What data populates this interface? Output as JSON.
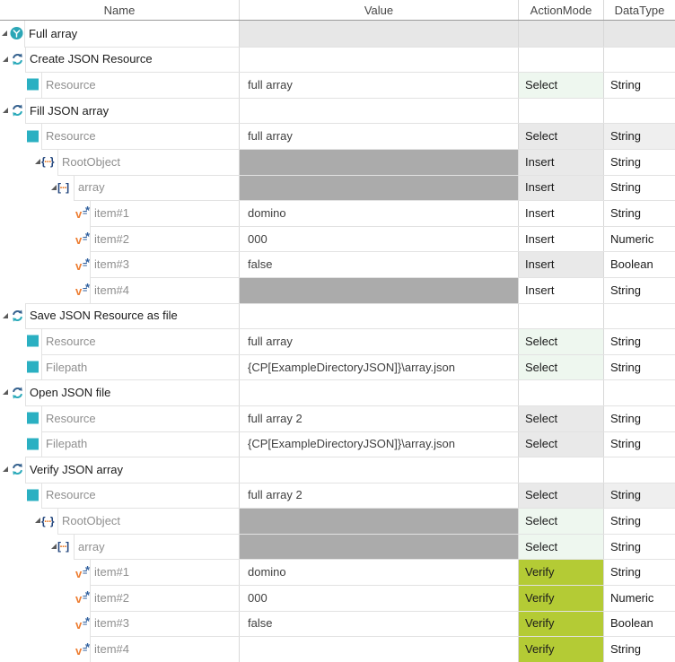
{
  "header": {
    "columns": [
      {
        "label": "Name"
      },
      {
        "label": "Value"
      },
      {
        "label": "ActionMode"
      },
      {
        "label": "DataType"
      }
    ]
  },
  "colors": {
    "verify_green": "#b4cb35",
    "select_mint": "#eef7ef",
    "actionmode_gray": "#e9e9e9",
    "disabled_value_gray": "#ababab",
    "row_header_gray": "#e7e7e7",
    "teal_accent": "#2bb0c2",
    "step_blue": "#35618e",
    "value_orange": "#ed7d31",
    "json_brace_blue": "#24477e"
  },
  "rows": [
    {
      "name": "Full array",
      "level": 0,
      "icon": "testcase-icon",
      "expander": true,
      "kind": "title",
      "value": "",
      "value_bg": "rowgray",
      "action_mode": "",
      "am_bg": "rowgray",
      "data_type": "",
      "dt_bg": "rowgray"
    },
    {
      "name": "Create JSON Resource",
      "level": 1,
      "icon": "module-step-icon",
      "expander": true,
      "kind": "title",
      "value": "",
      "value_bg": "white",
      "action_mode": "",
      "am_bg": "white",
      "data_type": "",
      "dt_bg": "white"
    },
    {
      "name": "Resource",
      "level": 2,
      "icon": "attribute-square-icon",
      "expander": false,
      "kind": "param",
      "value": "full array",
      "value_bg": "white",
      "action_mode": "Select",
      "am_bg": "mint",
      "data_type": "String",
      "dt_bg": "white"
    },
    {
      "name": "Fill JSON array",
      "level": 1,
      "icon": "module-step-icon",
      "expander": true,
      "kind": "title",
      "value": "",
      "value_bg": "white",
      "action_mode": "",
      "am_bg": "white",
      "data_type": "",
      "dt_bg": "white"
    },
    {
      "name": "Resource",
      "level": 2,
      "icon": "attribute-square-icon",
      "expander": false,
      "kind": "param",
      "value": "full array",
      "value_bg": "white",
      "action_mode": "Select",
      "am_bg": "gray",
      "data_type": "String",
      "dt_bg": "gray2"
    },
    {
      "name": "RootObject",
      "level": 3,
      "icon": "json-object-icon",
      "expander": true,
      "kind": "param",
      "value": "",
      "value_bg": "dark",
      "action_mode": "Insert",
      "am_bg": "gray",
      "data_type": "String",
      "dt_bg": "white"
    },
    {
      "name": "array",
      "level": 4,
      "icon": "json-array-icon",
      "expander": true,
      "kind": "param",
      "value": "",
      "value_bg": "dark",
      "action_mode": "Insert",
      "am_bg": "gray",
      "data_type": "String",
      "dt_bg": "white"
    },
    {
      "name": "item#1",
      "level": 5,
      "icon": "value-icon",
      "expander": false,
      "kind": "param",
      "value": "domino",
      "value_bg": "white",
      "action_mode": "Insert",
      "am_bg": "white",
      "data_type": "String",
      "dt_bg": "white"
    },
    {
      "name": "item#2",
      "level": 5,
      "icon": "value-icon",
      "expander": false,
      "kind": "param",
      "value": "000",
      "value_bg": "white",
      "action_mode": "Insert",
      "am_bg": "white",
      "data_type": "Numeric",
      "dt_bg": "white"
    },
    {
      "name": "item#3",
      "level": 5,
      "icon": "value-icon",
      "expander": false,
      "kind": "param",
      "value": "false",
      "value_bg": "white",
      "action_mode": "Insert",
      "am_bg": "gray",
      "data_type": "Boolean",
      "dt_bg": "white"
    },
    {
      "name": "item#4",
      "level": 5,
      "icon": "value-icon",
      "expander": false,
      "kind": "param",
      "value": "",
      "value_bg": "dark",
      "action_mode": "Insert",
      "am_bg": "white",
      "data_type": "String",
      "dt_bg": "white"
    },
    {
      "name": "Save JSON Resource as file",
      "level": 1,
      "icon": "module-step-icon",
      "expander": true,
      "kind": "title",
      "value": "",
      "value_bg": "white",
      "action_mode": "",
      "am_bg": "white",
      "data_type": "",
      "dt_bg": "white"
    },
    {
      "name": "Resource",
      "level": 2,
      "icon": "attribute-square-icon",
      "expander": false,
      "kind": "param",
      "value": "full array",
      "value_bg": "white",
      "action_mode": "Select",
      "am_bg": "mint",
      "data_type": "String",
      "dt_bg": "white"
    },
    {
      "name": "Filepath",
      "level": 2,
      "icon": "attribute-square-icon",
      "expander": false,
      "kind": "param",
      "value": "{CP[ExampleDirectoryJSON]}\\array.json",
      "value_bg": "white",
      "action_mode": "Select",
      "am_bg": "mint",
      "data_type": "String",
      "dt_bg": "white"
    },
    {
      "name": "Open JSON file",
      "level": 1,
      "icon": "module-step-icon",
      "expander": true,
      "kind": "title",
      "value": "",
      "value_bg": "white",
      "action_mode": "",
      "am_bg": "white",
      "data_type": "",
      "dt_bg": "white"
    },
    {
      "name": "Resource",
      "level": 2,
      "icon": "attribute-square-icon",
      "expander": false,
      "kind": "param",
      "value": "full array 2",
      "value_bg": "white",
      "action_mode": "Select",
      "am_bg": "gray",
      "data_type": "String",
      "dt_bg": "white"
    },
    {
      "name": "Filepath",
      "level": 2,
      "icon": "attribute-square-icon",
      "expander": false,
      "kind": "param",
      "value": "{CP[ExampleDirectoryJSON]}\\array.json",
      "value_bg": "white",
      "action_mode": "Select",
      "am_bg": "gray",
      "data_type": "String",
      "dt_bg": "white"
    },
    {
      "name": "Verify JSON array",
      "level": 1,
      "icon": "module-step-icon",
      "expander": true,
      "kind": "title",
      "value": "",
      "value_bg": "white",
      "action_mode": "",
      "am_bg": "white",
      "data_type": "",
      "dt_bg": "white"
    },
    {
      "name": "Resource",
      "level": 2,
      "icon": "attribute-square-icon",
      "expander": false,
      "kind": "param",
      "value": "full array 2",
      "value_bg": "white",
      "action_mode": "Select",
      "am_bg": "gray",
      "data_type": "String",
      "dt_bg": "gray2"
    },
    {
      "name": "RootObject",
      "level": 3,
      "icon": "json-object-icon",
      "expander": true,
      "kind": "param",
      "value": "",
      "value_bg": "dark",
      "action_mode": "Select",
      "am_bg": "mint",
      "data_type": "String",
      "dt_bg": "white"
    },
    {
      "name": "array",
      "level": 4,
      "icon": "json-array-icon",
      "expander": true,
      "kind": "param",
      "value": "",
      "value_bg": "dark",
      "action_mode": "Select",
      "am_bg": "mint",
      "data_type": "String",
      "dt_bg": "white"
    },
    {
      "name": "item#1",
      "level": 5,
      "icon": "value-icon",
      "expander": false,
      "kind": "param",
      "value": "domino",
      "value_bg": "white",
      "action_mode": "Verify",
      "am_bg": "green",
      "data_type": "String",
      "dt_bg": "white"
    },
    {
      "name": "item#2",
      "level": 5,
      "icon": "value-icon",
      "expander": false,
      "kind": "param",
      "value": "000",
      "value_bg": "white",
      "action_mode": "Verify",
      "am_bg": "green",
      "data_type": "Numeric",
      "dt_bg": "white"
    },
    {
      "name": "item#3",
      "level": 5,
      "icon": "value-icon",
      "expander": false,
      "kind": "param",
      "value": "false",
      "value_bg": "white",
      "action_mode": "Verify",
      "am_bg": "green",
      "data_type": "Boolean",
      "dt_bg": "white"
    },
    {
      "name": "item#4",
      "level": 5,
      "icon": "value-icon",
      "expander": false,
      "kind": "param",
      "value": "",
      "value_bg": "white",
      "action_mode": "Verify",
      "am_bg": "green",
      "data_type": "String",
      "dt_bg": "white"
    }
  ]
}
